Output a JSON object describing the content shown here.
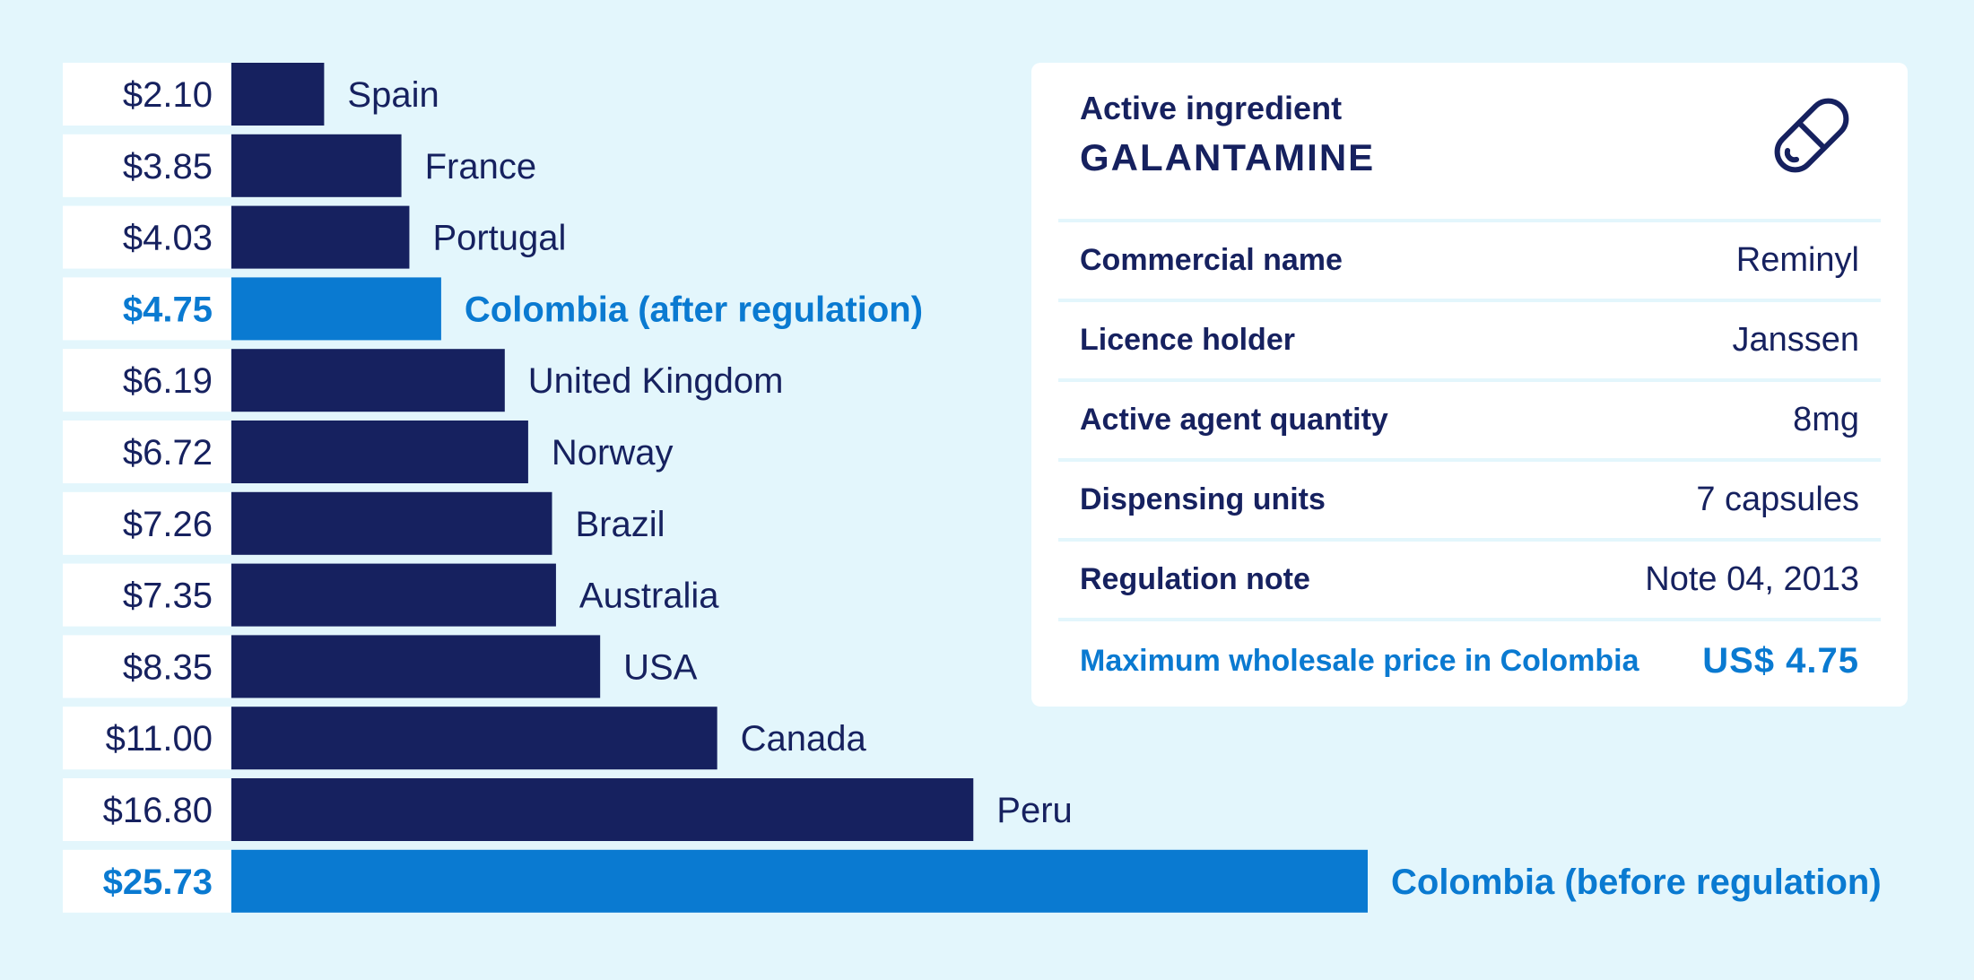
{
  "chart_data": {
    "type": "bar",
    "orientation": "horizontal",
    "categories": [
      "Spain",
      "France",
      "Portugal",
      "Colombia (after regulation)",
      "United Kingdom",
      "Norway",
      "Brazil",
      "Australia",
      "USA",
      "Canada",
      "Peru",
      "Colombia (before regulation)"
    ],
    "values": [
      2.1,
      3.85,
      4.03,
      4.75,
      6.19,
      6.72,
      7.26,
      7.35,
      8.35,
      11.0,
      16.8,
      25.73
    ],
    "value_labels": [
      "$2.10",
      "$3.85",
      "$4.03",
      "$4.75",
      "$6.19",
      "$6.72",
      "$7.26",
      "$7.35",
      "$8.35",
      "$11.00",
      "$16.80",
      "$25.73"
    ],
    "highlighted": [
      false,
      false,
      false,
      true,
      false,
      false,
      false,
      false,
      false,
      false,
      false,
      true
    ],
    "colors": {
      "default_bar": "#16215f",
      "highlight_bar": "#0a7ad1",
      "default_text": "#16215f",
      "highlight_text": "#0a7ad1"
    },
    "xlim": [
      0,
      25.73
    ],
    "grid": false,
    "legend": "none"
  },
  "info_card": {
    "ingredient_label": "Active ingredient",
    "ingredient_value": "GALANTAMINE",
    "icon": "pill-icon",
    "rows": [
      {
        "key": "Commercial name",
        "value": "Reminyl"
      },
      {
        "key": "Licence holder",
        "value": "Janssen"
      },
      {
        "key": "Active agent quantity",
        "value": "8mg"
      },
      {
        "key": "Dispensing units",
        "value": "7 capsules"
      },
      {
        "key": "Regulation note",
        "value": "Note 04, 2013"
      }
    ],
    "highlight_row": {
      "key": "Maximum wholesale price in Colombia",
      "value": "US$ 4.75"
    }
  },
  "colors": {
    "background": "#e3f6fc",
    "navy": "#16215f",
    "blue": "#0a7ad1",
    "white": "#ffffff"
  }
}
